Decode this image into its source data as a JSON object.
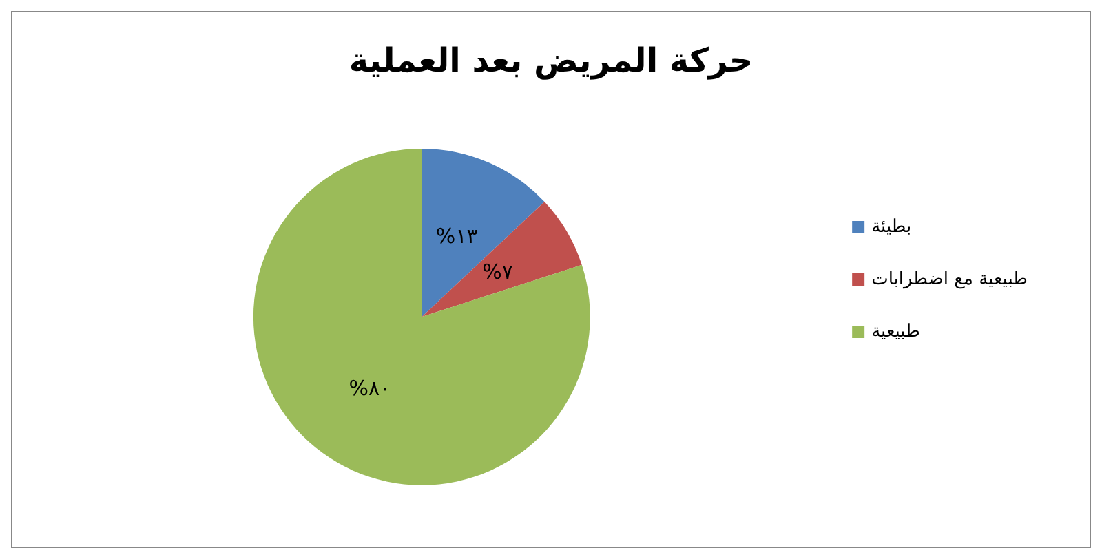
{
  "chart_data": {
    "type": "pie",
    "title": "حركة المريض بعد العملية",
    "categories": [
      "بطيئة",
      "طبيعية مع اضطرابات",
      "طبيعية"
    ],
    "values": [
      13,
      7,
      80
    ],
    "colors": [
      "#4f81bd",
      "#c0504d",
      "#9bbb59"
    ],
    "value_labels": [
      "%١٣",
      "%٧",
      "%٨٠"
    ],
    "legend": "right"
  }
}
